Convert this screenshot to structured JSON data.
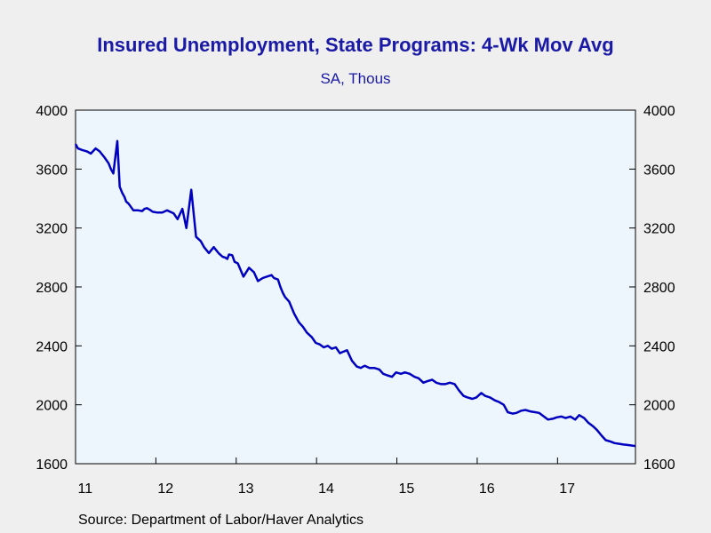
{
  "chart_data": {
    "type": "line",
    "title": "Insured Unemployment, State Programs: 4-Wk Mov Avg",
    "subtitle": "SA, Thous",
    "source": "Source:  Department of Labor/Haver Analytics",
    "xlabel": "",
    "ylabel": "",
    "x_tick_labels": [
      "11",
      "12",
      "13",
      "14",
      "15",
      "16",
      "17"
    ],
    "x_range": [
      2011.0,
      2017.97
    ],
    "ylim": [
      1600,
      4000
    ],
    "y_ticks": [
      1600,
      2000,
      2400,
      2800,
      3200,
      3600,
      4000
    ],
    "grid": false,
    "legend": "none",
    "colors": {
      "line": "#0000c0",
      "plot_bg": "#eef6fd",
      "page_bg": "#efefef",
      "title": "#1a1aa6"
    },
    "series": [
      {
        "x": [
          2011.0,
          2011.03,
          2011.08,
          2011.14,
          2011.19,
          2011.25,
          2011.3,
          2011.36,
          2011.41,
          2011.44,
          2011.47,
          2011.52,
          2011.55,
          2011.58,
          2011.61,
          2011.63,
          2011.66,
          2011.72,
          2011.78,
          2011.83,
          2011.86,
          2011.89,
          2011.92,
          2011.96,
          2012.02,
          2012.08,
          2012.14,
          2012.22,
          2012.27,
          2012.33,
          2012.38,
          2012.44,
          2012.5,
          2012.56,
          2012.6,
          2012.66,
          2012.72,
          2012.78,
          2012.83,
          2012.86,
          2012.89,
          2012.91,
          2012.95,
          2012.98,
          2013.02,
          2013.09,
          2013.16,
          2013.22,
          2013.27,
          2013.33,
          2013.38,
          2013.44,
          2013.47,
          2013.52,
          2013.55,
          2013.58,
          2013.61,
          2013.66,
          2013.72,
          2013.78,
          2013.83,
          2013.88,
          2013.94,
          2013.99,
          2014.04,
          2014.09,
          2014.14,
          2014.19,
          2014.24,
          2014.29,
          2014.33,
          2014.38,
          2014.44,
          2014.5,
          2014.55,
          2014.6,
          2014.66,
          2014.72,
          2014.78,
          2014.83,
          2014.88,
          2014.94,
          2014.99,
          2015.05,
          2015.1,
          2015.16,
          2015.22,
          2015.27,
          2015.33,
          2015.38,
          2015.44,
          2015.49,
          2015.55,
          2015.6,
          2015.66,
          2015.72,
          2015.77,
          2015.83,
          2015.88,
          2015.94,
          2015.99,
          2016.05,
          2016.1,
          2016.16,
          2016.22,
          2016.27,
          2016.33,
          2016.38,
          2016.44,
          2016.49,
          2016.55,
          2016.6,
          2016.66,
          2016.72,
          2016.77,
          2016.83,
          2016.88,
          2016.94,
          2016.99,
          2017.05,
          2017.1,
          2017.16,
          2017.22,
          2017.27,
          2017.33,
          2017.38,
          2017.44,
          2017.49,
          2017.55,
          2017.6,
          2017.66,
          2017.71,
          2017.77,
          2017.82,
          2017.86,
          2017.9,
          2017.94,
          2017.97
        ],
        "values": [
          3770,
          3740,
          3730,
          3720,
          3705,
          3740,
          3720,
          3680,
          3640,
          3600,
          3570,
          3790,
          3480,
          3440,
          3410,
          3380,
          3365,
          3320,
          3320,
          3315,
          3330,
          3335,
          3325,
          3310,
          3305,
          3305,
          3320,
          3300,
          3260,
          3330,
          3200,
          3460,
          3140,
          3110,
          3070,
          3030,
          3070,
          3030,
          3005,
          3000,
          2990,
          3020,
          3015,
          2970,
          2960,
          2870,
          2930,
          2900,
          2840,
          2860,
          2870,
          2880,
          2860,
          2850,
          2800,
          2760,
          2730,
          2700,
          2620,
          2560,
          2530,
          2490,
          2460,
          2420,
          2410,
          2390,
          2400,
          2380,
          2390,
          2350,
          2360,
          2370,
          2300,
          2260,
          2250,
          2265,
          2250,
          2250,
          2240,
          2210,
          2200,
          2190,
          2220,
          2210,
          2220,
          2210,
          2190,
          2180,
          2150,
          2160,
          2170,
          2150,
          2140,
          2140,
          2150,
          2140,
          2100,
          2060,
          2050,
          2040,
          2050,
          2080,
          2060,
          2050,
          2030,
          2020,
          2000,
          1950,
          1940,
          1945,
          1960,
          1965,
          1955,
          1950,
          1945,
          1920,
          1900,
          1905,
          1915,
          1920,
          1910,
          1920,
          1900,
          1930,
          1910,
          1880,
          1855,
          1830,
          1790,
          1760,
          1750,
          1740,
          1735,
          1730,
          1728,
          1725,
          1722,
          1720
        ]
      }
    ]
  }
}
